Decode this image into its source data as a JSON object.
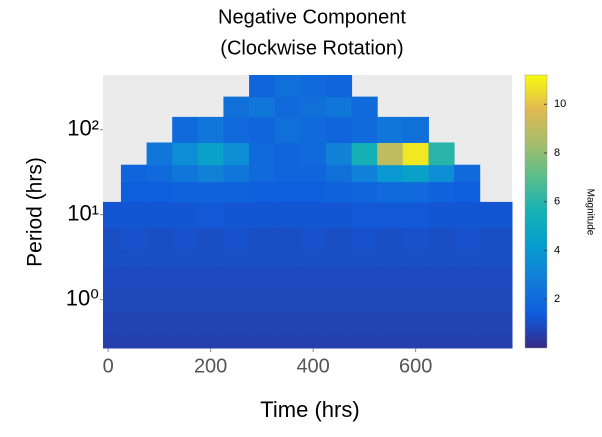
{
  "chart_data": {
    "type": "heatmap",
    "title": "Negative Component",
    "subtitle": "(Clockwise Rotation)",
    "x_label": "Time (hrs)",
    "y_label": "Period (hrs)",
    "colorbar_label": "Magnitude",
    "x": [
      0,
      50,
      100,
      150,
      200,
      250,
      300,
      350,
      400,
      450,
      500,
      550,
      600,
      650,
      700,
      750
    ],
    "y": [
      0.3,
      0.5,
      1,
      2,
      3,
      5,
      10,
      20,
      30,
      50,
      100,
      200,
      300
    ],
    "z": [
      [
        0.6,
        0.6,
        0.6,
        0.6,
        0.6,
        0.6,
        0.6,
        0.6,
        0.6,
        0.6,
        0.6,
        0.6,
        0.6,
        0.6,
        0.6,
        0.6
      ],
      [
        0.7,
        0.7,
        0.7,
        0.7,
        0.7,
        0.7,
        0.7,
        0.7,
        0.7,
        0.7,
        0.7,
        0.7,
        0.7,
        0.7,
        0.7,
        0.7
      ],
      [
        0.8,
        0.8,
        0.8,
        0.8,
        0.8,
        0.8,
        0.8,
        0.8,
        0.8,
        0.8,
        0.8,
        0.8,
        0.8,
        0.8,
        0.8,
        0.8
      ],
      [
        0.9,
        0.9,
        0.9,
        0.9,
        0.9,
        0.9,
        0.9,
        0.9,
        0.9,
        0.9,
        0.9,
        0.9,
        0.9,
        0.9,
        0.9,
        0.9
      ],
      [
        1.0,
        1.0,
        1.0,
        1.0,
        1.0,
        1.0,
        1.0,
        1.0,
        1.0,
        1.0,
        1.0,
        1.0,
        1.0,
        1.0,
        1.0,
        1.0
      ],
      [
        1.0,
        1.1,
        1.0,
        1.1,
        1.0,
        1.1,
        1.0,
        1.0,
        1.1,
        1.0,
        1.1,
        1.0,
        1.1,
        1.0,
        1.1,
        1.0
      ],
      [
        1.2,
        1.2,
        1.2,
        1.2,
        1.3,
        1.2,
        1.2,
        1.2,
        1.2,
        1.2,
        1.3,
        1.3,
        1.3,
        1.2,
        1.2,
        1.2
      ],
      [
        null,
        1.5,
        1.5,
        1.6,
        1.7,
        1.6,
        1.5,
        1.5,
        1.5,
        1.6,
        1.8,
        2.0,
        2.0,
        1.7,
        1.5,
        null
      ],
      [
        null,
        1.8,
        2.0,
        2.5,
        3.0,
        2.5,
        2.0,
        1.8,
        1.8,
        2.2,
        3.0,
        4.0,
        4.5,
        3.5,
        2.0,
        null
      ],
      [
        null,
        null,
        2.5,
        3.5,
        4.5,
        3.5,
        2.0,
        1.8,
        2.0,
        3.0,
        5.5,
        9.0,
        10.8,
        6.0,
        null,
        null
      ],
      [
        null,
        null,
        null,
        2.0,
        2.5,
        2.0,
        1.8,
        2.2,
        2.0,
        1.8,
        2.0,
        2.5,
        2.2,
        null,
        null,
        null
      ],
      [
        null,
        null,
        null,
        null,
        null,
        2.2,
        2.5,
        2.0,
        2.2,
        2.5,
        2.0,
        null,
        null,
        null,
        null,
        null
      ],
      [
        null,
        null,
        null,
        null,
        null,
        null,
        1.8,
        2.2,
        2.0,
        1.8,
        null,
        null,
        null,
        null,
        null,
        null
      ]
    ],
    "xlim": [
      -10,
      788
    ],
    "xticks": [
      0,
      200,
      400,
      600
    ],
    "ylim": [
      0.27,
      440
    ],
    "y_scale": "log",
    "yticks": [
      {
        "value": 1,
        "label": "10⁰"
      },
      {
        "value": 10,
        "label": "10¹"
      },
      {
        "value": 100,
        "label": "10²"
      }
    ],
    "clim": [
      0,
      11.2
    ],
    "cticks": [
      2,
      4,
      6,
      8,
      10
    ],
    "colormap": [
      "#352a87",
      "#0f5cdd",
      "#127dd8",
      "#079ccf",
      "#15b1b4",
      "#59bd8c",
      "#a5be6b",
      "#e1b952",
      "#f9fb0e"
    ],
    "background": "#ebebeb"
  }
}
